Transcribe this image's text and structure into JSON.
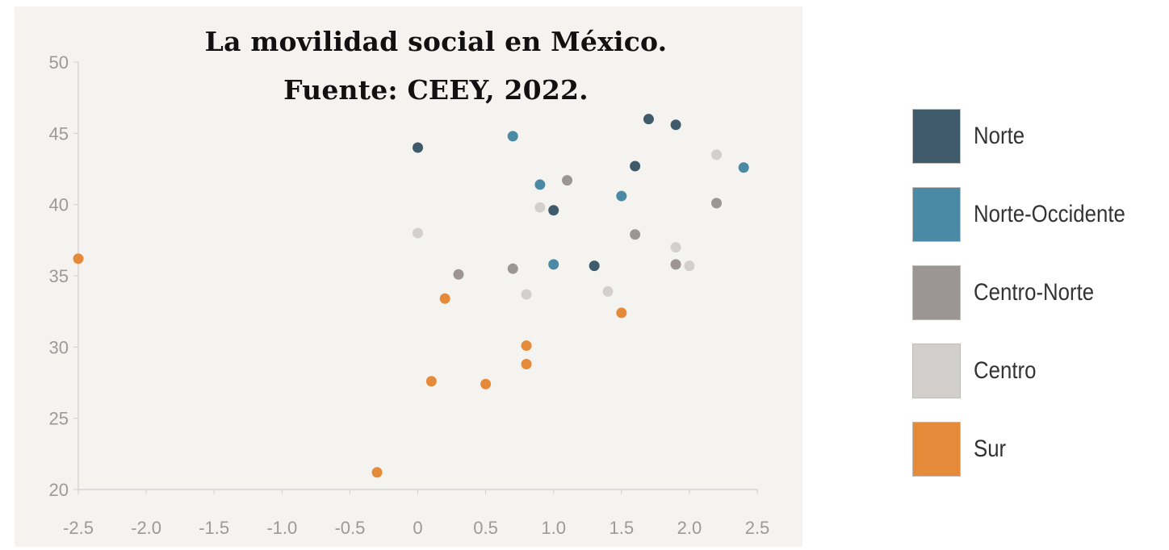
{
  "chart_data": {
    "type": "scatter",
    "title_lines": [
      "La movilidad social en México.",
      "Fuente: CEEY, 2022."
    ],
    "xlabel": "",
    "ylabel": "",
    "xlim": [
      -2.5,
      2.5
    ],
    "ylim": [
      20,
      50
    ],
    "x_ticks": [
      "-2.5",
      "-2.0",
      "-1.5",
      "-1.0",
      "-0.5",
      "0",
      "0.5",
      "1.0",
      "1.5",
      "2.0",
      "2.5"
    ],
    "x_tick_values": [
      -2.5,
      -2.0,
      -1.5,
      -1.0,
      -0.5,
      0,
      0.5,
      1.0,
      1.5,
      2.0,
      2.5
    ],
    "y_ticks": [
      "20",
      "25",
      "30",
      "35",
      "40",
      "45",
      "50"
    ],
    "y_tick_values": [
      20,
      25,
      30,
      35,
      40,
      45,
      50
    ],
    "grid": false,
    "legend_position": "right",
    "series": [
      {
        "name": "Norte",
        "color": "#3f5a6a",
        "points": [
          [
            0,
            44
          ],
          [
            1.7,
            46
          ],
          [
            1.9,
            45.6
          ],
          [
            1.6,
            42.7
          ],
          [
            1.0,
            39.6
          ],
          [
            1.3,
            35.7
          ]
        ]
      },
      {
        "name": "Norte-Occidente",
        "color": "#4a8aa5",
        "points": [
          [
            0.7,
            44.8
          ],
          [
            2.4,
            42.6
          ],
          [
            0.9,
            41.4
          ],
          [
            1.5,
            40.6
          ],
          [
            1.0,
            35.8
          ]
        ]
      },
      {
        "name": "Centro-Norte",
        "color": "#9b9593",
        "points": [
          [
            1.1,
            41.7
          ],
          [
            2.2,
            40.1
          ],
          [
            1.6,
            37.9
          ],
          [
            0.7,
            35.5
          ],
          [
            0.3,
            35.1
          ],
          [
            1.9,
            35.8
          ]
        ]
      },
      {
        "name": "Centro",
        "color": "#d3cfcc",
        "points": [
          [
            2.2,
            43.5
          ],
          [
            0.9,
            39.8
          ],
          [
            0,
            38
          ],
          [
            1.9,
            37
          ],
          [
            2.0,
            35.7
          ],
          [
            1.4,
            33.9
          ],
          [
            0.8,
            33.7
          ]
        ]
      },
      {
        "name": "Sur",
        "color": "#e58a38",
        "points": [
          [
            -2.5,
            36.2
          ],
          [
            0.2,
            33.4
          ],
          [
            1.5,
            32.4
          ],
          [
            0.8,
            30.1
          ],
          [
            0.8,
            28.8
          ],
          [
            0.1,
            27.6
          ],
          [
            0.5,
            27.4
          ],
          [
            -0.3,
            21.2
          ]
        ]
      }
    ]
  }
}
